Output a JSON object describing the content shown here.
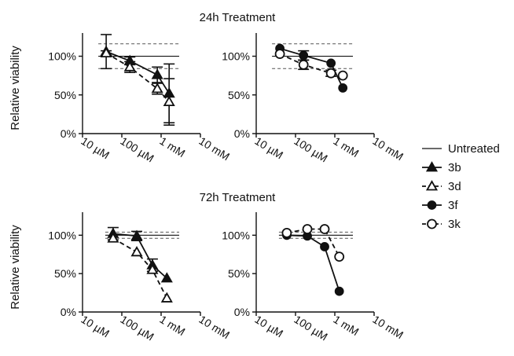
{
  "colors": {
    "ink": "#111111",
    "background": "#ffffff"
  },
  "rows": [
    {
      "title": "24h Treatment",
      "ylabel": "Relative viability"
    },
    {
      "title": "72h Treatment",
      "ylabel": "Relative viability"
    }
  ],
  "axes": {
    "y_ticks": [
      "100%",
      "50%",
      "0%"
    ],
    "x_ticks": [
      "10 µM",
      "100 µM",
      "1 mM",
      "10 mM"
    ]
  },
  "legend": [
    {
      "name": "Untreated",
      "marker": "none",
      "dash": "solid"
    },
    {
      "name": "3b",
      "marker": "triangle-filled",
      "dash": "solid"
    },
    {
      "name": "3d",
      "marker": "triangle-open",
      "dash": "dashed"
    },
    {
      "name": "3f",
      "marker": "circle-filled",
      "dash": "solid"
    },
    {
      "name": "3k",
      "marker": "circle-open",
      "dash": "dashed"
    }
  ],
  "chart_data": [
    {
      "type": "line",
      "title": "24h Treatment",
      "ylabel": "Relative viability",
      "xlabel": "",
      "x_scale": "log",
      "xlim": [
        "10 µM",
        "10 mM"
      ],
      "ylim": [
        0,
        1.3
      ],
      "untreated": {
        "mean": 1.0,
        "range": [
          0.84,
          1.16
        ]
      },
      "series": [
        {
          "name": "3b",
          "x": [
            "40 µM",
            "160 µM",
            "800 µM",
            "1.6 mM"
          ],
          "y": [
            1.06,
            0.94,
            0.76,
            0.52
          ],
          "err": [
            0.22,
            0.05,
            0.1,
            0.38
          ]
        },
        {
          "name": "3d",
          "x": [
            "40 µM",
            "160 µM",
            "800 µM",
            "1.6 mM"
          ],
          "y": [
            1.04,
            0.86,
            0.58,
            0.41
          ],
          "err": [
            0.03,
            0.07,
            0.07,
            0.3
          ]
        }
      ]
    },
    {
      "type": "line",
      "title": "24h Treatment",
      "ylabel": "",
      "xlabel": "",
      "x_scale": "log",
      "xlim": [
        "10 µM",
        "10 mM"
      ],
      "ylim": [
        0,
        1.3
      ],
      "untreated": {
        "mean": 1.0,
        "range": [
          0.84,
          1.16
        ]
      },
      "series": [
        {
          "name": "3f",
          "x": [
            "40 µM",
            "160 µM",
            "800 µM",
            "1.6 mM"
          ],
          "y": [
            1.1,
            1.01,
            0.91,
            0.59
          ],
          "err": [
            0,
            0.06,
            0,
            0
          ]
        },
        {
          "name": "3k",
          "x": [
            "40 µM",
            "160 µM",
            "800 µM",
            "1.6 mM"
          ],
          "y": [
            1.03,
            0.89,
            0.78,
            0.75
          ],
          "err": [
            0,
            0.06,
            0.04,
            0
          ]
        }
      ]
    },
    {
      "type": "line",
      "title": "72h Treatment",
      "ylabel": "Relative viability",
      "xlabel": "",
      "x_scale": "log",
      "xlim": [
        "10 µM",
        "10 mM"
      ],
      "ylim": [
        0,
        1.3
      ],
      "untreated": {
        "mean": 1.0,
        "range": [
          0.96,
          1.04
        ]
      },
      "series": [
        {
          "name": "3b",
          "x": [
            "60 µM",
            "240 µM",
            "600 µM",
            "1.4 mM"
          ],
          "y": [
            1.02,
            0.99,
            0.61,
            0.44
          ],
          "err": [
            0.08,
            0.06,
            0.08,
            0
          ]
        },
        {
          "name": "3d",
          "x": [
            "60 µM",
            "240 µM",
            "600 µM",
            "1.4 mM"
          ],
          "y": [
            0.96,
            0.78,
            0.55,
            0.18
          ],
          "err": [
            0,
            0,
            0,
            0
          ]
        }
      ]
    },
    {
      "type": "line",
      "title": "72h Treatment",
      "ylabel": "",
      "xlabel": "",
      "x_scale": "log",
      "xlim": [
        "10 µM",
        "10 mM"
      ],
      "ylim": [
        0,
        1.3
      ],
      "untreated": {
        "mean": 1.0,
        "range": [
          0.96,
          1.04
        ]
      },
      "series": [
        {
          "name": "3f",
          "x": [
            "60 µM",
            "200 µM",
            "550 µM",
            "1.3 mM"
          ],
          "y": [
            1.0,
            0.99,
            0.85,
            0.27
          ],
          "err": [
            0,
            0,
            0,
            0
          ]
        },
        {
          "name": "3k",
          "x": [
            "60 µM",
            "200 µM",
            "550 µM",
            "1.3 mM"
          ],
          "y": [
            1.03,
            1.08,
            1.08,
            0.72
          ],
          "err": [
            0,
            0,
            0,
            0
          ]
        }
      ]
    }
  ]
}
